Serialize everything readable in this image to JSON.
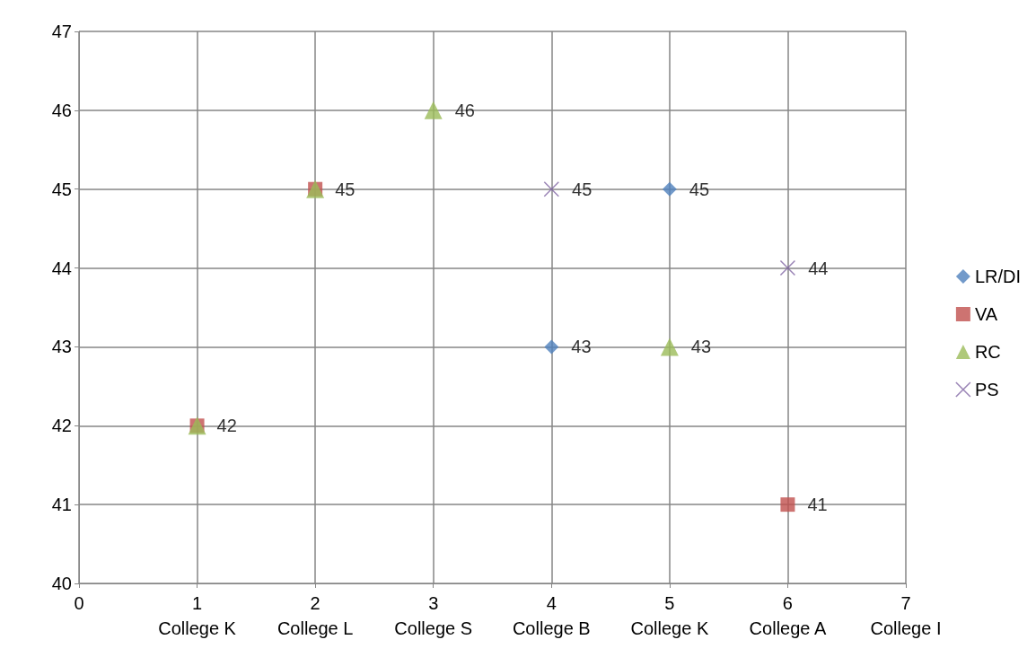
{
  "chart_data": {
    "type": "scatter",
    "xlim": [
      0,
      7
    ],
    "ylim": [
      40,
      47
    ],
    "xticks": [
      0,
      {
        "value": 1,
        "label": "1\nCollege K"
      },
      {
        "value": 2,
        "label": "2\nCollege L"
      },
      {
        "value": 3,
        "label": "3\nCollege S"
      },
      {
        "value": 4,
        "label": "4\nCollege B"
      },
      {
        "value": 5,
        "label": "5\nCollege K"
      },
      {
        "value": 6,
        "label": "6\nCollege A"
      },
      {
        "value": 7,
        "label": "7\nCollege I"
      }
    ],
    "yticks": [
      40,
      41,
      42,
      43,
      44,
      45,
      46,
      47
    ],
    "grid": true,
    "legend": "right",
    "data_labels": true,
    "series": [
      {
        "name": "LR/DI",
        "color": "#4f81bd",
        "marker": "diamond",
        "x": [
          4,
          5
        ],
        "values": [
          43,
          45
        ]
      },
      {
        "name": "VA",
        "color": "#c0504d",
        "marker": "square",
        "x": [
          1,
          2,
          6
        ],
        "values": [
          42,
          45,
          41
        ]
      },
      {
        "name": "RC",
        "color": "#9bbb59",
        "marker": "triangle",
        "x": [
          1,
          2,
          3,
          5
        ],
        "values": [
          42,
          45,
          46,
          43
        ],
        "value_labels": [
          null,
          null,
          "46",
          "43"
        ]
      },
      {
        "name": "PS",
        "color": "#8064a2",
        "marker": "cross",
        "x": [
          4,
          6
        ],
        "values": [
          45,
          44
        ]
      }
    ]
  }
}
